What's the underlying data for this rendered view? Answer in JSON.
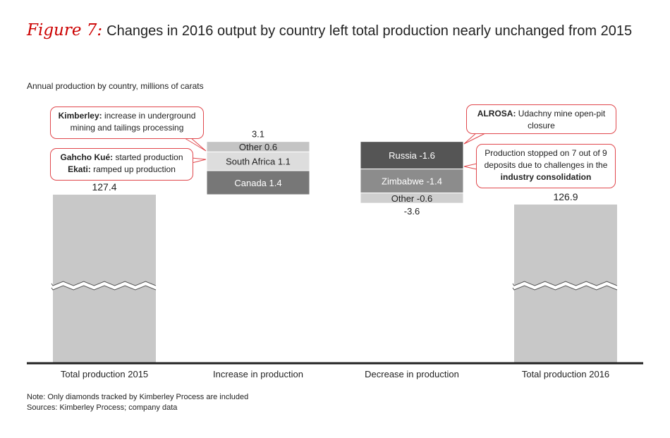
{
  "figure": {
    "label": "Figure 7:",
    "title": "Changes in 2016 output by country left total production nearly unchanged from 2015",
    "subtitle": "Annual production by country, millions of carats"
  },
  "chart_data": {
    "type": "bar",
    "subtype": "waterfall",
    "categories": [
      "Total production 2015",
      "Increase in production",
      "Decrease in production",
      "Total production 2016"
    ],
    "totals": [
      {
        "category": "Total production 2015",
        "value": 127.4,
        "label": "127.4"
      },
      {
        "category": "Total production 2016",
        "value": 126.9,
        "label": "126.9"
      }
    ],
    "increase": {
      "category": "Increase in production",
      "total_label": "3.1",
      "segments": [
        {
          "name": "Canada",
          "value": 1.4,
          "label": "Canada 1.4",
          "color": "#777777"
        },
        {
          "name": "South Africa",
          "value": 1.1,
          "label": "South Africa 1.1",
          "color": "#dddddd"
        },
        {
          "name": "Other",
          "value": 0.6,
          "label": "Other 0.6",
          "color": "#c4c4c4"
        }
      ]
    },
    "decrease": {
      "category": "Decrease in production",
      "total_label": "-3.6",
      "segments": [
        {
          "name": "Russia",
          "value": -1.6,
          "label": "Russia -1.6",
          "color": "#555555"
        },
        {
          "name": "Zimbabwe",
          "value": -1.4,
          "label": "Zimbabwe -1.4",
          "color": "#8c8c8c"
        },
        {
          "name": "Other",
          "value": -0.6,
          "label": "Other -0.6",
          "color": "#cfcfcf"
        }
      ]
    },
    "axis_break": true,
    "grid": false
  },
  "callouts": {
    "kimberley": {
      "bold": "Kimberley:",
      "text": " increase in underground mining and tailings processing"
    },
    "gahcho": {
      "bold1": "Gahcho Kué:",
      "text1": " started production",
      "bold2": "Ekati:",
      "text2": " ramped up production"
    },
    "alrosa": {
      "bold": "ALROSA:",
      "text": " Udachny mine open-pit closure"
    },
    "stopped": {
      "text": "Production stopped on 7 out of 9 deposits due to challenges in the ",
      "bold": "industry consolidation"
    }
  },
  "footnote": {
    "note": "Note: Only diamonds tracked by Kimberley Process are included",
    "sources": "Sources: Kimberley Process; company data"
  },
  "colors": {
    "accent": "#cc0000",
    "total_bar": "#c8c8c8",
    "axis": "#222222"
  }
}
